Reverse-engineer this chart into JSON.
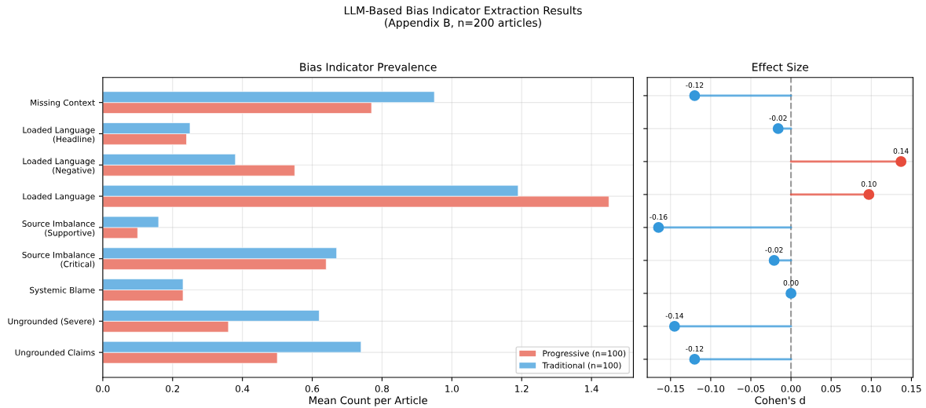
{
  "chart_data": [
    {
      "type": "bar",
      "orientation": "horizontal",
      "title": "Bias Indicator Prevalence",
      "xlabel": "Mean Count per Article",
      "annotations": [
        "LLM-Based Bias Indicator Extraction Results\n(Appendix B, n=200 articles)"
      ],
      "categories": [
        "Missing Context",
        "Loaded Language\n(Headline)",
        "Loaded Language\n(Negative)",
        "Loaded Language",
        "Source Imbalance\n(Supportive)",
        "Source Imbalance\n(Critical)",
        "Systemic Blame",
        "Ungrounded (Severe)",
        "Ungrounded Claims"
      ],
      "series": [
        {
          "name": "Progressive (n=100)",
          "color": "#ec8376",
          "values": [
            0.77,
            0.24,
            0.55,
            1.45,
            0.1,
            0.64,
            0.23,
            0.36,
            0.5
          ]
        },
        {
          "name": "Traditional (n=100)",
          "color": "#6fb5e4",
          "values": [
            0.95,
            0.25,
            0.38,
            1.19,
            0.16,
            0.67,
            0.23,
            0.62,
            0.74
          ]
        }
      ],
      "xlim": [
        0,
        1.52
      ],
      "xticks": [
        {
          "value": 0,
          "label": "0.0"
        },
        {
          "value": 0.2,
          "label": "0.2"
        },
        {
          "value": 0.4,
          "label": "0.4"
        },
        {
          "value": 0.6,
          "label": "0.6"
        },
        {
          "value": 0.8,
          "label": "0.8"
        },
        {
          "value": 1.0,
          "label": "1.0"
        },
        {
          "value": 1.2,
          "label": "1.2"
        },
        {
          "value": 1.4,
          "label": "1.4"
        }
      ],
      "grid": true,
      "legend": "bottom right"
    },
    {
      "type": "lollipop",
      "orientation": "horizontal",
      "title": "Effect Size",
      "xlabel": "Cohen's d",
      "categories": [
        null,
        null,
        null,
        null,
        null,
        null,
        null,
        null,
        null
      ],
      "tick_labels": "x",
      "values": [
        -0.12,
        -0.016,
        0.137,
        0.097,
        -0.165,
        -0.021,
        0.0,
        -0.145,
        -0.12
      ],
      "value_labels": [
        "-0.12",
        "-0.02",
        "0.14",
        "0.10",
        "-0.16",
        "-0.02",
        "0.00",
        "-0.14",
        "-0.12"
      ],
      "colors": [
        "#3498db",
        "#3498db",
        "#e74c3c",
        "#e74c3c",
        "#3498db",
        "#3498db",
        "#3498db",
        "#3498db",
        "#3498db"
      ],
      "marker": "circle",
      "ref_lines": [
        {
          "axis": "x",
          "value": 0,
          "color": "#999999",
          "line_style": "dashed"
        }
      ],
      "xlim": [
        -0.179,
        0.152
      ],
      "xticks": [
        {
          "value": -0.15,
          "label": "−0.15"
        },
        {
          "value": -0.1,
          "label": "−0.10"
        },
        {
          "value": -0.05,
          "label": "−0.05"
        },
        {
          "value": 0,
          "label": "0.00"
        },
        {
          "value": 0.05,
          "label": "0.05"
        },
        {
          "value": 0.1,
          "label": "0.10"
        },
        {
          "value": 0.15,
          "label": "0.15"
        }
      ],
      "grid": true
    }
  ]
}
